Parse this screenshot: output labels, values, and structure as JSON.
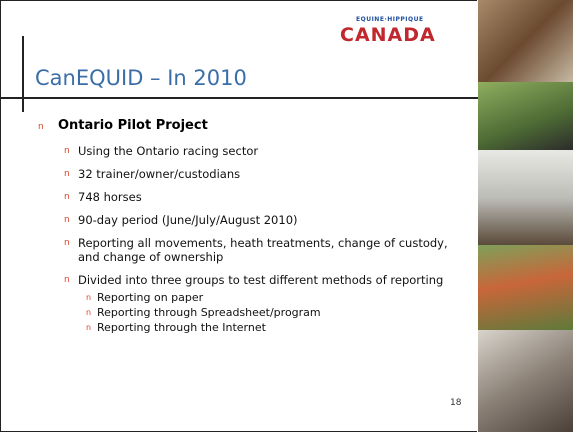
{
  "logo": {
    "top": "EQUINE·HIPPIQUE",
    "name": "CANADA"
  },
  "title": "CanEQUID – In 2010",
  "bullet": "n",
  "content": {
    "heading": "Ontario Pilot Project",
    "items": [
      {
        "text": "Using the Ontario racing sector"
      },
      {
        "text": "32 trainer/owner/custodians"
      },
      {
        "text": "748 horses"
      },
      {
        "text": "90-day period (June/July/August 2010)"
      },
      {
        "text": "Reporting all movements, heath treatments, change of custody, and change of ownership"
      },
      {
        "text": "Divided into three groups to test different methods of reporting",
        "sub": [
          "Reporting on paper",
          "Reporting through Spreadsheet/program",
          "Reporting through the Internet"
        ]
      }
    ]
  },
  "page_number": "18"
}
